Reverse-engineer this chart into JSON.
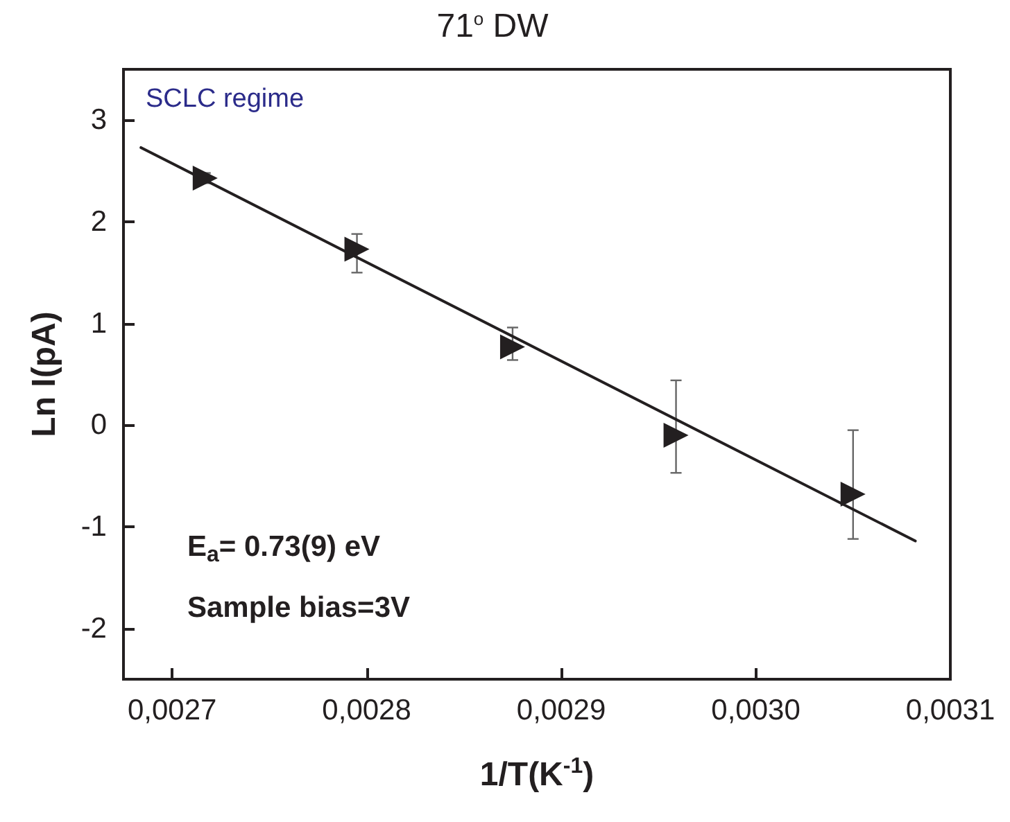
{
  "chart_data": {
    "type": "scatter",
    "title": "71$^{o}$ DW",
    "xlabel": "1/T(K$^{-1}$)",
    "ylabel": "Ln I(pA)",
    "annotations": [
      "SCLC regime",
      "E$_{a}$= 0.73(9) eV",
      "Sample bias=3V"
    ],
    "series": [
      {
        "type": "scatter",
        "color": "#231f20",
        "marker": "triangle",
        "x": [
          0.002717,
          0.002795,
          0.002875,
          0.002959,
          0.00305
        ],
        "values": [
          2.43,
          1.73,
          0.77,
          -0.1,
          -0.68
        ],
        "errors": [
          [
            2.38,
            2.48
          ],
          [
            1.5,
            1.88
          ],
          [
            0.64,
            0.96
          ],
          [
            -0.47,
            0.44
          ],
          [
            -1.12,
            -0.05
          ]
        ]
      },
      {
        "type": "line",
        "color": "#231f20",
        "marker": "none",
        "line_style": "solid",
        "x": [
          0.002684,
          0.003082
        ],
        "values": [
          2.73,
          -1.14
        ]
      }
    ],
    "xlim": [
      0.002675,
      0.0031
    ],
    "xticks": [
      {
        "value": 0.0027,
        "label": "0,0027"
      },
      {
        "value": 0.0028,
        "label": "0,0028"
      },
      {
        "value": 0.0029,
        "label": "0,0029"
      },
      {
        "value": 0.003,
        "label": "0,0030"
      },
      {
        "value": 0.0031,
        "label": "0,0031"
      }
    ],
    "ylim": [
      -2.5,
      3.5
    ],
    "yticks": [
      -2,
      -1,
      0,
      1,
      2,
      3
    ],
    "grid": false
  }
}
